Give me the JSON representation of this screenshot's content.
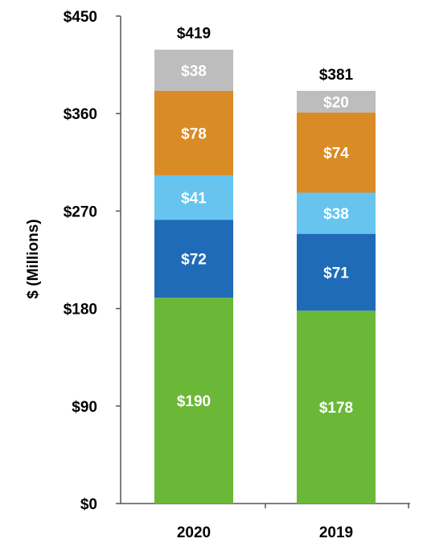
{
  "chart_data": {
    "type": "bar",
    "stacked": true,
    "categories": [
      "2020",
      "2019"
    ],
    "series": [
      {
        "values": [
          190,
          178
        ],
        "labels": [
          "$190",
          "$178"
        ],
        "color": "#6bb839"
      },
      {
        "values": [
          72,
          71
        ],
        "labels": [
          "$72",
          "$71"
        ],
        "color": "#1f6bb7"
      },
      {
        "values": [
          41,
          38
        ],
        "labels": [
          "$41",
          "$38"
        ],
        "color": "#66c4ef"
      },
      {
        "values": [
          78,
          74
        ],
        "labels": [
          "$78",
          "$74"
        ],
        "color": "#d98b26"
      },
      {
        "values": [
          38,
          20
        ],
        "labels": [
          "$38",
          "$20"
        ],
        "color": "#bdbdbd"
      }
    ],
    "totals": [
      419,
      381
    ],
    "total_labels": [
      "$419",
      "$381"
    ],
    "ylabel": "$ (Millions)",
    "ylim": [
      0,
      450
    ],
    "yticks": [
      0,
      90,
      180,
      270,
      360,
      450
    ],
    "ytick_labels": [
      "$0",
      "$90",
      "$180",
      "$270",
      "$360",
      "$450"
    ],
    "grid": false,
    "legend": "none"
  }
}
